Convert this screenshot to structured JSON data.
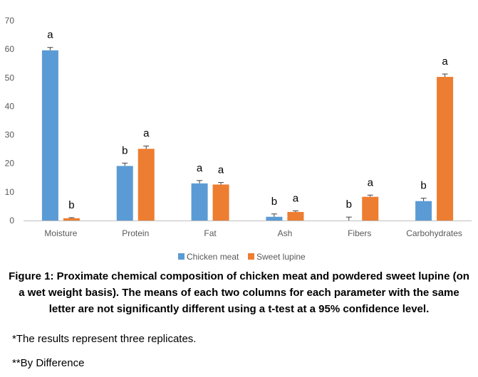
{
  "chart_data": {
    "type": "bar",
    "categories": [
      "Moisture",
      "Protein",
      "Fat",
      "Ash",
      "Fibers",
      "Carbohydrates"
    ],
    "series": [
      {
        "name": "Chicken meat",
        "color": "#5b9bd5",
        "values": [
          59.6,
          19.1,
          13.0,
          1.3,
          0.0,
          6.8
        ],
        "errors": [
          1.0,
          1.0,
          1.0,
          1.0,
          1.2,
          1.0
        ],
        "letters": [
          "a",
          "b",
          "a",
          "b",
          "b",
          "b"
        ]
      },
      {
        "name": "Sweet lupine",
        "color": "#ed7d31",
        "values": [
          0.8,
          25.1,
          12.6,
          3.0,
          8.3,
          50.3
        ],
        "errors": [
          0.2,
          1.0,
          0.7,
          0.4,
          0.6,
          1.0
        ],
        "letters": [
          "b",
          "a",
          "a",
          "a",
          "a",
          "a"
        ]
      }
    ],
    "yticks": [
      0,
      10,
      20,
      30,
      40,
      50,
      60,
      70
    ],
    "ylim": [
      0,
      70
    ],
    "grid": false,
    "legend_position": "bottom"
  },
  "caption": "Figure 1: Proximate chemical composition of chicken meat and powdered sweet lupine (on a wet weight basis). The means of each two columns for each parameter with the same letter are not significantly different using a t-test at a 95% confidence level.",
  "notes": {
    "replicates": "*The results represent three replicates.",
    "difference": "**By Difference"
  }
}
